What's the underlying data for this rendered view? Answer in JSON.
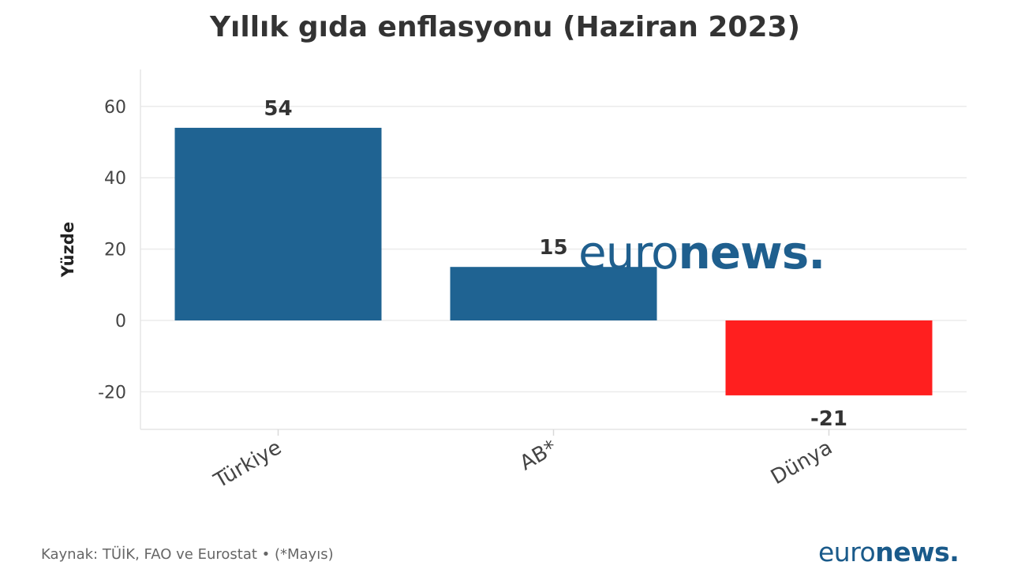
{
  "chart_data": {
    "type": "bar",
    "title": "Yıllık gıda enflasyonu (Haziran 2023)",
    "ylabel": "Yüzde",
    "xlabel": "",
    "categories": [
      "Türkiye",
      "AB*",
      "Dünya"
    ],
    "values": [
      54,
      15,
      -21
    ],
    "data_labels": [
      "54",
      "15",
      "-21"
    ],
    "ylim": [
      -30,
      70
    ],
    "yticks": [
      60,
      40,
      20,
      0,
      -20
    ],
    "ytick_labels": [
      "60",
      "40",
      "20",
      "0",
      "-20"
    ],
    "grid": true,
    "colors": [
      "#1f6392",
      "#1f6392",
      "#ff1f1f"
    ]
  },
  "footer": {
    "source": "Kaynak: TÜİK, FAO ve Eurostat • (*Mayıs)"
  },
  "watermark": {
    "light": "euro",
    "bold": "news."
  },
  "logo": {
    "light": "euro",
    "bold": "news."
  }
}
